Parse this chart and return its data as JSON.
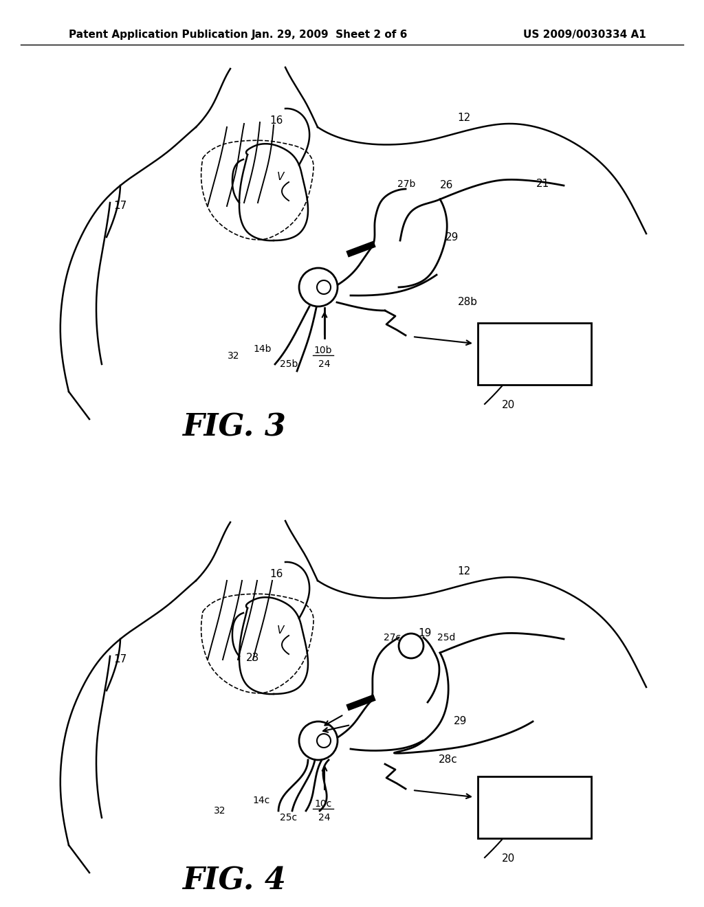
{
  "header_left": "Patent Application Publication",
  "header_mid": "Jan. 29, 2009  Sheet 2 of 6",
  "header_right": "US 2009/0030334 A1",
  "fig3_label": "FIG. 3",
  "fig4_label": "FIG. 4",
  "background_color": "#ffffff",
  "line_color": "#000000"
}
